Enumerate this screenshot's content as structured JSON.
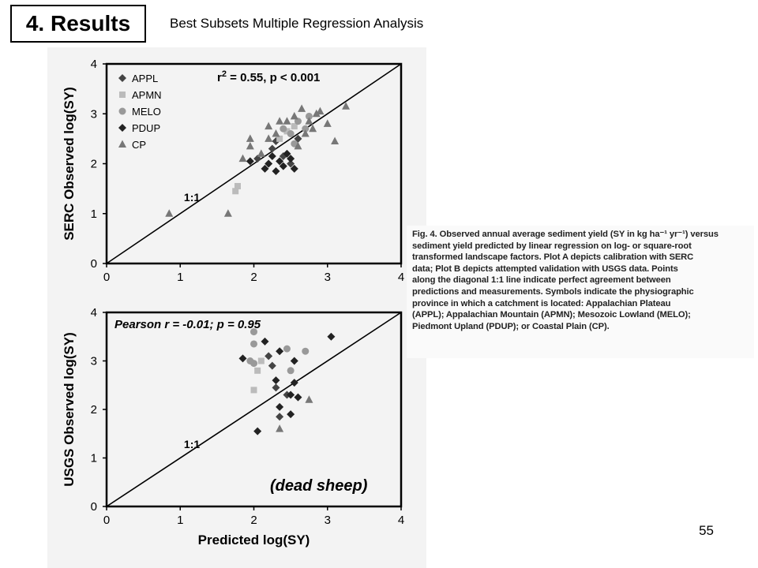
{
  "slide": {
    "title": "4. Results",
    "subtitle": "Best Subsets Multiple Regression Analysis",
    "page_number": "55",
    "annotation": "(dead sheep)"
  },
  "caption_lines": [
    "Fig. 4. Observed annual average sediment yield (SY in kg ha⁻¹ yr⁻¹) versus",
    "sediment yield predicted by linear regression on log- or square-root",
    "transformed landscape factors. Plot A depicts calibration with SERC",
    "data; Plot B depicts attempted validation with USGS data. Points",
    "along the diagonal 1:1 line indicate perfect agreement between",
    "predictions and measurements. Symbols indicate the physiographic",
    "province in which a catchment is located: Appalachian Plateau",
    "(APPL); Appalachian Mountain (APMN); Mesozoic Lowland (MELO);",
    "Piedmont Upland (PDUP); or Coastal Plain (CP)."
  ],
  "colors": {
    "APPL": "#444444",
    "APMN": "#bbbbbb",
    "MELO": "#999999",
    "PDUP": "#222222",
    "CP": "#777777"
  },
  "chart_data": [
    {
      "type": "scatter",
      "title": "",
      "annotation": "r² = 0.55, p < 0.001",
      "annotation_main": "r",
      "annotation_sup": "2",
      "annotation_rest": " = 0.55, p < 0.001",
      "line_label": "1:1",
      "xlabel": "",
      "ylabel": "SERC Observed log(SY)",
      "xlim": [
        0,
        4
      ],
      "ylim": [
        0,
        4
      ],
      "xticks": [
        "0",
        "1",
        "2",
        "3",
        "4"
      ],
      "yticks": [
        "0",
        "1",
        "2",
        "3",
        "4"
      ],
      "legend": [
        "APPL",
        "APMN",
        "MELO",
        "PDUP",
        "CP"
      ],
      "legend_position": "top-left",
      "series": [
        {
          "name": "APPL",
          "marker": "diamond",
          "points": [
            [
              2.05,
              2.1
            ],
            [
              2.25,
              2.3
            ],
            [
              2.4,
              2.15
            ],
            [
              2.5,
              2.0
            ],
            [
              2.3,
              2.45
            ],
            [
              2.6,
              2.5
            ]
          ]
        },
        {
          "name": "APMN",
          "marker": "square",
          "points": [
            [
              1.75,
              1.45
            ],
            [
              1.78,
              1.55
            ],
            [
              2.45,
              2.65
            ],
            [
              2.55,
              2.75
            ],
            [
              2.35,
              2.5
            ]
          ]
        },
        {
          "name": "MELO",
          "marker": "circle",
          "points": [
            [
              2.5,
              2.6
            ],
            [
              2.6,
              2.85
            ],
            [
              2.7,
              2.7
            ],
            [
              2.4,
              2.7
            ],
            [
              2.55,
              2.4
            ],
            [
              2.75,
              2.95
            ]
          ]
        },
        {
          "name": "PDUP",
          "marker": "diamond",
          "points": [
            [
              2.2,
              2.0
            ],
            [
              2.3,
              1.85
            ],
            [
              2.4,
              1.95
            ],
            [
              2.45,
              2.2
            ],
            [
              2.5,
              2.1
            ],
            [
              2.35,
              2.05
            ],
            [
              2.55,
              1.9
            ],
            [
              2.25,
              2.15
            ],
            [
              1.95,
              2.05
            ],
            [
              2.15,
              1.9
            ]
          ]
        },
        {
          "name": "CP",
          "marker": "triangle",
          "points": [
            [
              0.85,
              1.0
            ],
            [
              1.65,
              1.0
            ],
            [
              1.85,
              2.1
            ],
            [
              1.95,
              2.35
            ],
            [
              2.1,
              2.2
            ],
            [
              2.2,
              2.75
            ],
            [
              2.3,
              2.6
            ],
            [
              2.45,
              2.85
            ],
            [
              2.55,
              2.95
            ],
            [
              2.65,
              3.1
            ],
            [
              2.75,
              2.85
            ],
            [
              2.85,
              3.0
            ],
            [
              3.0,
              2.8
            ],
            [
              3.1,
              2.45
            ],
            [
              3.25,
              3.15
            ],
            [
              2.6,
              2.35
            ],
            [
              2.7,
              2.6
            ],
            [
              2.35,
              2.85
            ],
            [
              2.2,
              2.5
            ],
            [
              2.8,
              2.7
            ],
            [
              1.95,
              2.5
            ],
            [
              2.9,
              3.05
            ]
          ]
        }
      ]
    },
    {
      "type": "scatter",
      "title": "",
      "annotation": "Pearson r = -0.01; p = 0.95",
      "line_label": "1:1",
      "xlabel": "Predicted log(SY)",
      "ylabel": "USGS Observed log(SY)",
      "xlim": [
        0,
        4
      ],
      "ylim": [
        0,
        4
      ],
      "xticks": [
        "0",
        "1",
        "2",
        "3",
        "4"
      ],
      "yticks": [
        "0",
        "1",
        "2",
        "3",
        "4"
      ],
      "series": [
        {
          "name": "APPL",
          "marker": "diamond",
          "points": [
            [
              2.25,
              2.9
            ],
            [
              2.2,
              3.1
            ],
            [
              2.3,
              2.45
            ],
            [
              2.45,
              2.3
            ],
            [
              2.35,
              1.85
            ]
          ]
        },
        {
          "name": "APMN",
          "marker": "square",
          "points": [
            [
              2.0,
              2.4
            ],
            [
              2.05,
              2.8
            ],
            [
              2.1,
              3.0
            ]
          ]
        },
        {
          "name": "MELO",
          "marker": "circle",
          "points": [
            [
              2.0,
              3.6
            ],
            [
              2.0,
              3.35
            ],
            [
              2.45,
              3.25
            ],
            [
              2.5,
              2.8
            ],
            [
              2.0,
              2.95
            ],
            [
              2.7,
              3.2
            ],
            [
              1.95,
              3.0
            ]
          ]
        },
        {
          "name": "PDUP",
          "marker": "diamond",
          "points": [
            [
              1.85,
              3.05
            ],
            [
              2.15,
              3.4
            ],
            [
              2.35,
              3.2
            ],
            [
              2.3,
              2.6
            ],
            [
              2.55,
              3.0
            ],
            [
              2.55,
              2.55
            ],
            [
              2.5,
              2.3
            ],
            [
              2.6,
              2.25
            ],
            [
              2.35,
              2.05
            ],
            [
              2.5,
              1.9
            ],
            [
              2.05,
              1.55
            ],
            [
              3.05,
              3.5
            ]
          ]
        },
        {
          "name": "CP",
          "marker": "triangle",
          "points": [
            [
              2.35,
              1.6
            ],
            [
              2.75,
              2.2
            ]
          ]
        }
      ]
    }
  ]
}
